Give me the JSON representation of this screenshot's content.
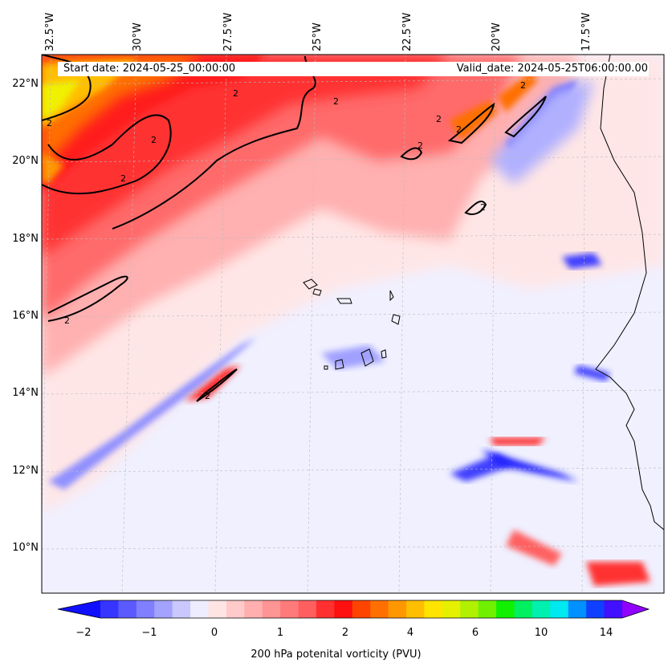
{
  "header": {
    "start_date": "Start date: 2024-05-25_00:00:00",
    "valid_date": "Valid_date: 2024-05-25T06:00:00.00"
  },
  "axes": {
    "lon_labels": [
      "32.5°W",
      "30°W",
      "27.5°W",
      "25°W",
      "22.5°W",
      "20°W",
      "17.5°W"
    ],
    "lat_labels": [
      "22°N",
      "20°N",
      "18°N",
      "16°N",
      "14°N",
      "12°N",
      "10°N"
    ]
  },
  "contour": {
    "label": "2"
  },
  "colorbar": {
    "title": "200 hPa potenital vorticity (PVU)",
    "tick_labels": [
      "−2",
      "−1",
      "0",
      "1",
      "2",
      "4",
      "6",
      "10",
      "14"
    ],
    "colors": [
      "#1010ff",
      "#3535ff",
      "#5a5aff",
      "#7f7fff",
      "#a3a3ff",
      "#c8c8ff",
      "#ededff",
      "#ffe4e4",
      "#ffcaca",
      "#ffafaf",
      "#ff9494",
      "#ff7a7a",
      "#ff5f5f",
      "#ff3030",
      "#ff1010",
      "#ff4400",
      "#ff7000",
      "#ff9800",
      "#ffbe00",
      "#ffe400",
      "#e4f000",
      "#b0f000",
      "#70f000",
      "#10f000",
      "#00f060",
      "#00f0b0",
      "#00e8f0",
      "#0090ff",
      "#1040ff",
      "#4010ff",
      "#9000ff"
    ]
  }
}
